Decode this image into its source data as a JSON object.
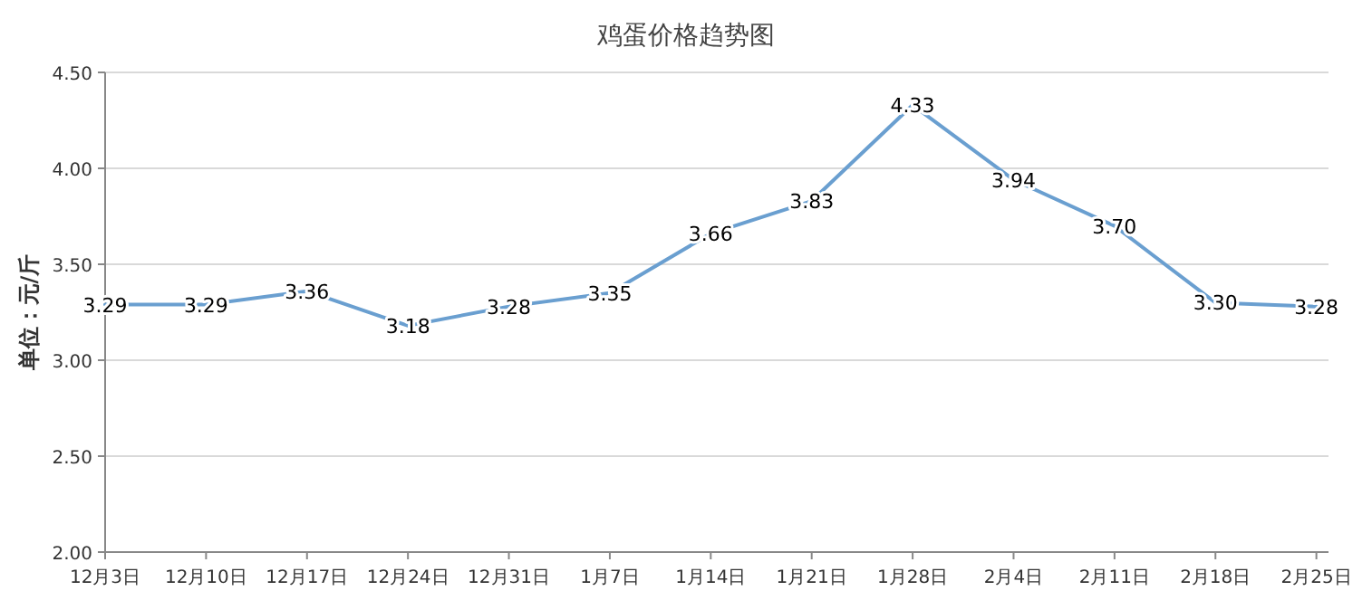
{
  "chart_data": {
    "type": "line",
    "title": "鸡蛋价格趋势图",
    "ylabel": "单位：元/斤",
    "categories": [
      "12月3日",
      "12月10日",
      "12月17日",
      "12月24日",
      "12月31日",
      "1月7日",
      "1月14日",
      "1月21日",
      "1月28日",
      "2月4日",
      "2月11日",
      "2月18日",
      "2月25日"
    ],
    "series": [
      {
        "color": "#6a9fd0",
        "values": [
          3.29,
          3.29,
          3.36,
          3.18,
          3.28,
          3.35,
          3.66,
          3.83,
          4.33,
          3.94,
          3.7,
          3.3,
          3.28
        ],
        "value_labels": [
          "3.29",
          "3.29",
          "3.36",
          "3.18",
          "3.28",
          "3.35",
          "3.66",
          "3.83",
          "4.33",
          "3.94",
          "3.70",
          "3.30",
          "3.28"
        ]
      }
    ],
    "ylim": [
      2,
      4.5
    ],
    "yticks": [
      {
        "value": 2,
        "label": "2.00"
      },
      {
        "value": 2.5,
        "label": "2.50"
      },
      {
        "value": 3,
        "label": "3.00"
      },
      {
        "value": 3.5,
        "label": "3.50"
      },
      {
        "value": 4,
        "label": "4.00"
      },
      {
        "value": 4.5,
        "label": "4.50"
      }
    ],
    "grid": "y",
    "marker": "none",
    "line_style": "solid"
  }
}
